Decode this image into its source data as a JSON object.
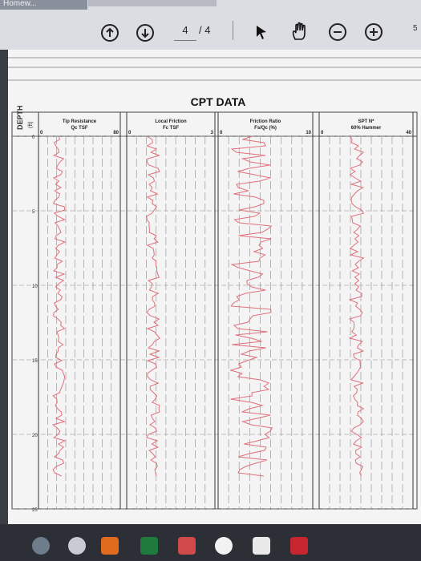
{
  "window": {
    "tab_label": "Homew..."
  },
  "toolbar": {
    "current_page": "4",
    "total_pages": "/ 4",
    "right_edge_label": "5"
  },
  "chart": {
    "title": "CPT DATA",
    "depth_axis_label": "DEPTH",
    "depth_axis_unit": "(ft)",
    "depth_ticks": [
      "0",
      "5",
      "10",
      "15",
      "20",
      "25"
    ],
    "columns": [
      {
        "name": "Tip Resistance",
        "sub": "Qc TSF",
        "left_tick": "0",
        "right_tick": "80"
      },
      {
        "name": "Local Friction",
        "sub": "Fc TSF",
        "left_tick": "0",
        "right_tick": "3"
      },
      {
        "name": "Friction Ratio",
        "sub": "Fs/Qc (%)",
        "left_tick": "0",
        "right_tick": "10"
      },
      {
        "name": "SPT N*",
        "sub": "60% Hammer",
        "left_tick": "0",
        "right_tick": "40"
      }
    ],
    "line_color": "#e0707c"
  }
}
